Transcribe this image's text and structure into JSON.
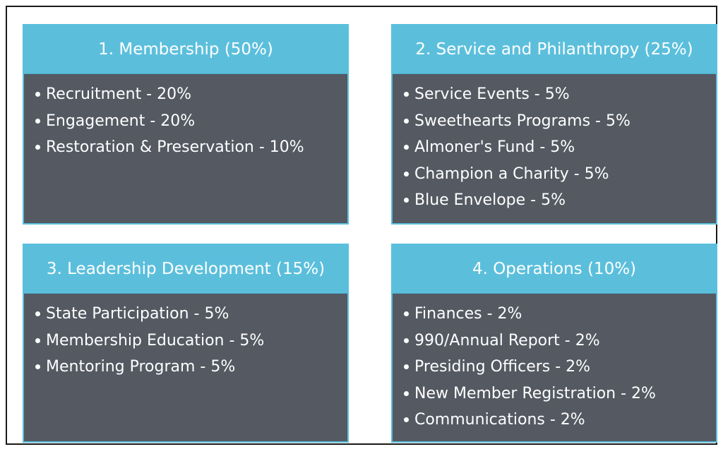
{
  "colors": {
    "header_bg": "#5bbfdc",
    "body_bg": "#545962",
    "text": "#ffffff",
    "frame_border": "#1a1a1a"
  },
  "panels": [
    {
      "title": "1. Membership (50%)",
      "items": [
        "Recruitment - 20%",
        "Engagement - 20%",
        "Restoration & Preservation - 10%"
      ]
    },
    {
      "title": "2. Service and Philanthropy (25%)",
      "items": [
        "Service Events - 5%",
        "Sweethearts Programs - 5%",
        "Almoner's Fund - 5%",
        "Champion a Charity - 5%",
        "Blue Envelope - 5%"
      ]
    },
    {
      "title": "3. Leadership Development (15%)",
      "items": [
        "State Participation - 5%",
        "Membership Education - 5%",
        "Mentoring Program - 5%"
      ]
    },
    {
      "title": "4. Operations (10%)",
      "items": [
        "Finances - 2%",
        "990/Annual Report - 2%",
        "Presiding Officers - 2%",
        "New Member Registration -  2%",
        "Communications - 2%"
      ]
    }
  ]
}
